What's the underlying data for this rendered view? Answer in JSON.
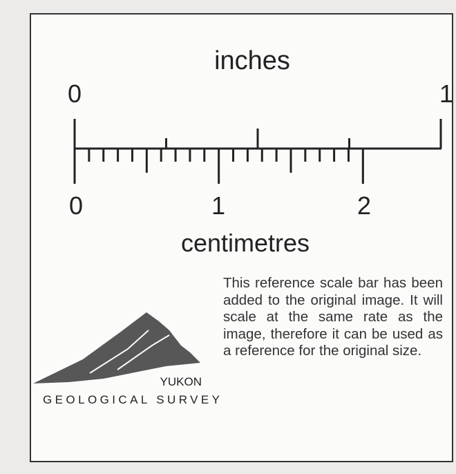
{
  "scale_bar": {
    "top_unit": "inches",
    "top_labels": [
      "0",
      "1"
    ],
    "bottom_unit": "centimetres",
    "bottom_labels": [
      "0",
      "1",
      "2"
    ]
  },
  "note": "This reference scale bar has been added to the original image. It will scale at the same rate as the image, therefore it can be used as a reference for the original size.",
  "logo": {
    "line1": "YUKON",
    "line2": "GEOLOGICAL SURVEY"
  }
}
